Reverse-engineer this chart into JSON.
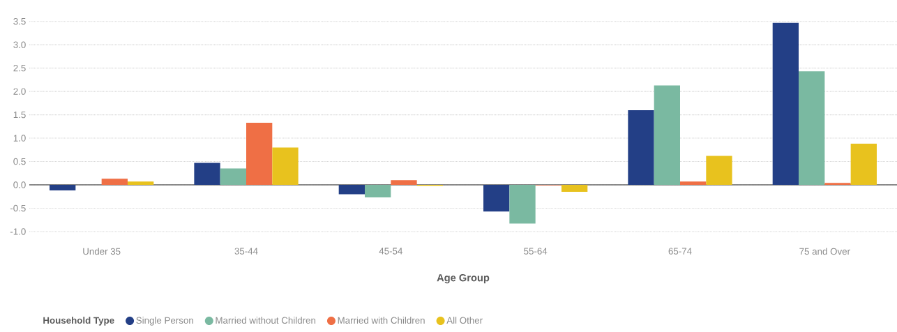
{
  "chart_data": {
    "type": "bar",
    "xlabel": "Age Group",
    "legend_title": "Household Type",
    "categories": [
      "Under 35",
      "35-44",
      "45-54",
      "55-64",
      "65-74",
      "75 and Over"
    ],
    "series": [
      {
        "name": "Single Person",
        "color": "#233f86",
        "values": [
          -0.12,
          0.47,
          -0.2,
          -0.57,
          1.6,
          3.47
        ]
      },
      {
        "name": "Married without Children",
        "color": "#7ab9a1",
        "values": [
          0,
          0.35,
          -0.27,
          -0.83,
          2.13,
          2.43
        ]
      },
      {
        "name": "Married with Children",
        "color": "#ef6f45",
        "values": [
          0.13,
          1.33,
          0.1,
          -0.01,
          0.07,
          0.04
        ]
      },
      {
        "name": "All Other",
        "color": "#e8c21e",
        "values": [
          0.07,
          0.8,
          -0.02,
          -0.15,
          0.62,
          0.88
        ]
      }
    ],
    "ylim": [
      -1.0,
      3.5
    ],
    "yticks": [
      {
        "value": -1.0,
        "label": "-1.0"
      },
      {
        "value": -0.5,
        "label": "-0.5"
      },
      {
        "value": 0,
        "label": "0.0"
      },
      {
        "value": 0.5,
        "label": "0.5"
      },
      {
        "value": 1.0,
        "label": "1.0"
      },
      {
        "value": 1.5,
        "label": "1.5"
      },
      {
        "value": 2.0,
        "label": "2.0"
      },
      {
        "value": 2.5,
        "label": "2.5"
      },
      {
        "value": 3.0,
        "label": "3.0"
      },
      {
        "value": 3.5,
        "label": "3.5"
      }
    ],
    "grid": "y",
    "legend": "bottom",
    "marker": "circle"
  }
}
